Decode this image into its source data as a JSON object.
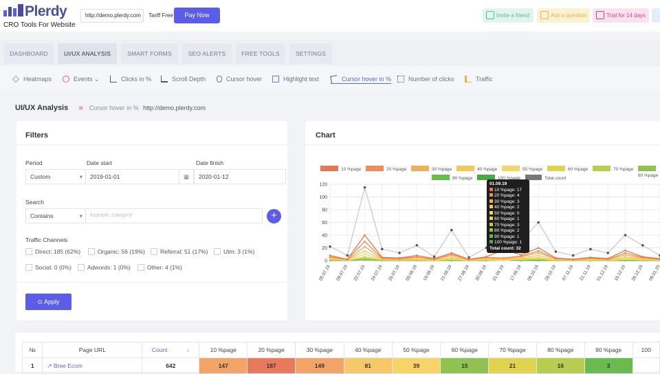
{
  "header": {
    "logo_text": "Plerdy",
    "logo_sub": "CRO Tools For Website",
    "url": "http://demo.plerdy.com",
    "tariff": "Tariff Free",
    "pay_now": "Pay Now",
    "invite": "Invite a friend",
    "ask": "Ask a question",
    "trial": "Trial for 14 days"
  },
  "tabs": [
    "DASHBOARD",
    "UI/UX ANALYSIS",
    "SMART FORMS",
    "SEO ALERTS",
    "FREE TOOLS",
    "SETTINGS"
  ],
  "subnav": [
    {
      "label": "Heatmaps",
      "icon": "layers-icon"
    },
    {
      "label": "Events",
      "icon": "target-icon"
    },
    {
      "label": "Clicks in %",
      "icon": "sort-icon"
    },
    {
      "label": "Scroll Depth",
      "icon": "scroll-icon"
    },
    {
      "label": "Cursor hover",
      "icon": "mouse-icon"
    },
    {
      "label": "Highlight text",
      "icon": "highlight-icon"
    },
    {
      "label": "Cursor hover in %",
      "icon": "cursor-icon"
    },
    {
      "label": "Number of clicks",
      "icon": "grid-icon"
    },
    {
      "label": "Traffic",
      "icon": "bar-icon"
    }
  ],
  "page": {
    "title": "UI/UX Analysis",
    "crumb_mode": "Cursor hover in %",
    "crumb_url": "http://demo.plerdy.com"
  },
  "filters": {
    "title": "Filters",
    "period_label": "Period",
    "period_value": "Custom",
    "date_start_label": "Date start",
    "date_start": "2019-01-01",
    "date_finish_label": "Date finish",
    "date_finish": "2020-01-12",
    "search_label": "Search",
    "search_mode": "Contains",
    "search_placeholder": "Example: /category/",
    "channels_label": "Traffic Channels",
    "channels": [
      "Direct: 185 (62%)",
      "Organic: 56 (19%)",
      "Referral: 51 (17%)",
      "Utm: 3 (1%)",
      "Social: 0 (0%)",
      "Adwords: 1 (0%)",
      "Other: 4 (1%)"
    ],
    "apply": "Apply"
  },
  "chart_card": {
    "title": "Chart"
  },
  "chart_data": {
    "type": "line",
    "title": "",
    "xlabel": "",
    "ylabel": "",
    "ylim": [
      0,
      120
    ],
    "yticks": [
      0,
      20,
      40,
      60,
      80,
      100,
      120
    ],
    "grid": true,
    "legend_position": "top",
    "x": [
      "05.07.19",
      "09.07.19",
      "22.07.19",
      "24.07.19",
      "26.07.19",
      "09.08.19",
      "19.08.19",
      "21.08.19",
      "27.08.19",
      "30.08.19",
      "01.09.19",
      "17.09.19",
      "06.10.19",
      "28.10.19",
      "07.11.19",
      "21.11.19",
      "01.12.19",
      "16.12.19",
      "26.12.19",
      "09.01.20"
    ],
    "series": [
      {
        "name": "10 %page",
        "color": "#e8764f",
        "values": [
          8,
          2,
          40,
          5,
          4,
          8,
          3,
          12,
          2,
          6,
          17,
          9,
          20,
          4,
          2,
          5,
          3,
          16,
          6,
          3
        ]
      },
      {
        "name": "20 %page",
        "color": "#f08c5a",
        "values": [
          6,
          2,
          30,
          4,
          3,
          6,
          2,
          10,
          2,
          5,
          4,
          7,
          15,
          3,
          2,
          4,
          2,
          12,
          5,
          2
        ]
      },
      {
        "name": "30 %page",
        "color": "#f2ad58",
        "values": [
          5,
          1,
          22,
          3,
          2,
          5,
          2,
          8,
          1,
          4,
          3,
          6,
          12,
          3,
          1,
          3,
          2,
          9,
          4,
          2
        ]
      },
      {
        "name": "40 %page",
        "color": "#f5c85c",
        "values": [
          4,
          1,
          15,
          2,
          2,
          3,
          1,
          5,
          1,
          3,
          2,
          4,
          8,
          2,
          1,
          2,
          1,
          6,
          3,
          1
        ]
      },
      {
        "name": "50 %page",
        "color": "#f7d466",
        "values": [
          3,
          1,
          10,
          2,
          1,
          2,
          1,
          3,
          1,
          2,
          0,
          3,
          5,
          1,
          1,
          1,
          1,
          4,
          2,
          1
        ]
      },
      {
        "name": "60 %page",
        "color": "#e0d34e",
        "values": [
          2,
          0,
          6,
          1,
          1,
          1,
          0,
          2,
          0,
          1,
          1,
          2,
          3,
          1,
          0,
          1,
          0,
          2,
          1,
          0
        ]
      },
      {
        "name": "70 %page",
        "color": "#b9cc4e",
        "values": [
          1,
          0,
          4,
          1,
          0,
          1,
          0,
          1,
          0,
          1,
          3,
          1,
          2,
          0,
          0,
          0,
          0,
          1,
          1,
          0
        ]
      },
      {
        "name": "80 %page",
        "color": "#8fc24f",
        "values": [
          1,
          0,
          2,
          0,
          0,
          0,
          0,
          1,
          0,
          0,
          2,
          1,
          1,
          0,
          0,
          0,
          0,
          1,
          0,
          0
        ]
      },
      {
        "name": "90 %page",
        "color": "#6abb4f",
        "values": [
          0,
          0,
          1,
          0,
          0,
          0,
          0,
          0,
          0,
          0,
          1,
          0,
          1,
          0,
          0,
          0,
          0,
          0,
          0,
          0
        ]
      },
      {
        "name": "100 %page",
        "color": "#4aa845",
        "values": [
          0,
          0,
          1,
          0,
          0,
          0,
          0,
          0,
          0,
          0,
          1,
          0,
          0,
          0,
          0,
          0,
          0,
          0,
          0,
          0
        ]
      },
      {
        "name": "Total count",
        "color": "#777777",
        "values": [
          22,
          8,
          115,
          18,
          12,
          24,
          6,
          48,
          5,
          20,
          32,
          30,
          60,
          14,
          8,
          18,
          12,
          40,
          24,
          8
        ]
      }
    ],
    "tooltip": {
      "date": "01.09.19",
      "rows": [
        "10 %page: 17",
        "20 %page: 4",
        "30 %page: 3",
        "40 %page: 2",
        "50 %page: 0",
        "60 %page: 1",
        "70 %page: 3",
        "80 %page: 2",
        "90 %page: 1",
        "100 %page: 1",
        "Total count: 32"
      ]
    }
  },
  "table": {
    "headers": [
      "№",
      "Page URL",
      "Count",
      "10 %page",
      "20 %page",
      "30 %page",
      "40 %page",
      "50 %page",
      "60 %page",
      "70 %page",
      "80 %page",
      "90 %page",
      "100"
    ],
    "rows": [
      {
        "num": "1",
        "url": "Bree Ecom",
        "count": "642",
        "cells": [
          "147",
          "187",
          "149",
          "81",
          "39",
          "15",
          "21",
          "16",
          "3"
        ]
      }
    ],
    "cell_colors": [
      "#f2a366",
      "#e9795b",
      "#f2a366",
      "#f6c868",
      "#f7d466",
      "#8fc24f",
      "#e0d34e",
      "#b9cc4e",
      "#6abb4f"
    ]
  }
}
